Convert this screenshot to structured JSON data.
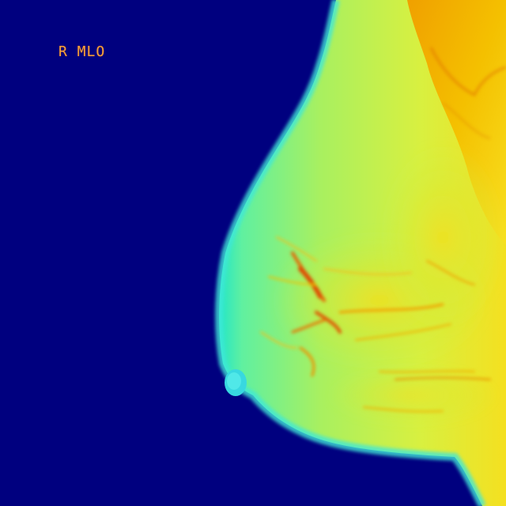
{
  "image": {
    "view_label": "R MLO",
    "colormap": "jet",
    "colors": {
      "background": "#00007f",
      "low": "#20e0c0",
      "mid": "#a0f060",
      "high": "#f0d000",
      "peak": "#e04000",
      "label": "#f0a040"
    }
  }
}
